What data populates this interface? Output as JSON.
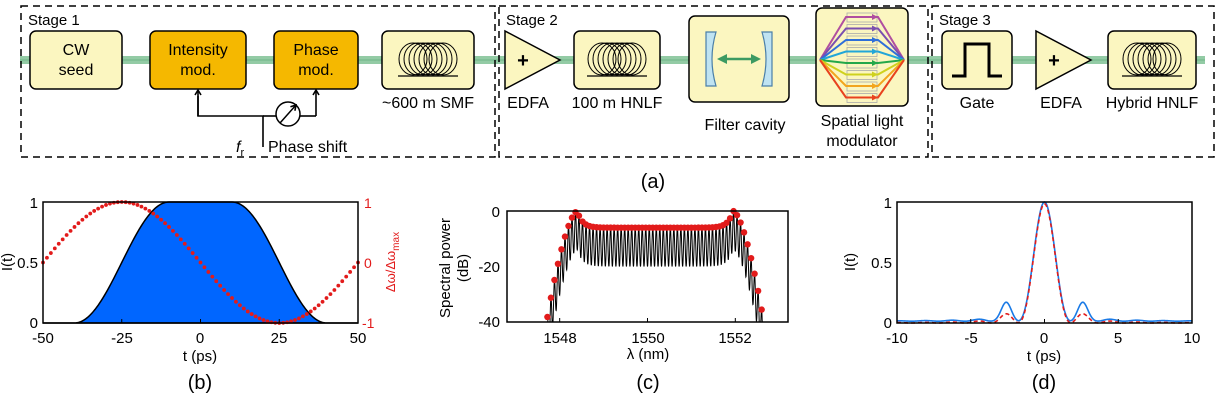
{
  "panel_a": {
    "caption": "(a)",
    "stages": [
      {
        "label": "Stage 1"
      },
      {
        "label": "Stage 2"
      },
      {
        "label": "Stage 3"
      }
    ],
    "blocks": {
      "cw_seed": [
        "CW",
        "seed"
      ],
      "intensity_mod": [
        "Intensity",
        "mod."
      ],
      "phase_mod": [
        "Phase",
        "mod."
      ],
      "smf": "~600 m SMF",
      "edfa1": "EDFA",
      "hnlf": "100 m HNLF",
      "filter": "Filter cavity",
      "slm": [
        "Spatial light",
        "modulator"
      ],
      "gate": "Gate",
      "edfa2": "EDFA",
      "hybrid_hnlf": "Hybrid HNLF",
      "fr_symbol": "f",
      "fr_sub": "r",
      "phase_shift": "Phase shift",
      "plus": "+"
    },
    "colors": {
      "fiber": "#93cba5",
      "mod_fill": "#f5b800",
      "box_fill": "#fbf6c0",
      "filter_fill": "#bfe3f2",
      "arrow_green": "#3c9a62"
    }
  },
  "panel_b": {
    "caption": "(b)",
    "xlabel": "t (ps)",
    "ylabel": "I(t)",
    "ylabel_right_main": "Δω/Δω",
    "ylabel_right_sub": "max",
    "xticks": [
      "-50",
      "-25",
      "0",
      "25",
      "50"
    ],
    "yticks": [
      "0",
      "0.5",
      "1"
    ],
    "yticks_right": [
      "-1",
      "0",
      "1"
    ],
    "colors": {
      "fill": "#0066ff",
      "dots": "#e21b1b"
    }
  },
  "panel_c": {
    "caption": "(c)",
    "xlabel": "λ (nm)",
    "ylabel": [
      "Spectral power",
      "(dB)"
    ],
    "xticks": [
      "1548",
      "1550",
      "1552"
    ],
    "yticks": [
      "0",
      "-20",
      "-40"
    ],
    "colors": {
      "dots": "#e21b1b",
      "line": "#000000"
    }
  },
  "panel_d": {
    "caption": "(d)",
    "xlabel": "t (ps)",
    "ylabel": "I(t)",
    "xticks": [
      "-10",
      "-5",
      "0",
      "5",
      "10"
    ],
    "yticks": [
      "0",
      "0.5",
      "1"
    ],
    "colors": {
      "blue": "#1a7ae6",
      "red": "#e21b1b"
    }
  },
  "chart_data": [
    {
      "type": "area",
      "panel": "b",
      "title": "",
      "xlabel": "t (ps)",
      "ylabel": "I(t)",
      "xlim": [
        -50,
        50
      ],
      "ylim": [
        0,
        1
      ],
      "y2lim": [
        -1,
        1
      ],
      "grid": false,
      "x": [
        -50,
        -40,
        -35,
        -30,
        -25,
        -20,
        -15,
        -10,
        -5,
        0,
        5,
        10,
        15,
        20,
        25,
        30,
        35,
        40,
        50
      ],
      "series": [
        {
          "values": [
            0,
            0,
            0.01,
            0.06,
            0.19,
            0.42,
            0.72,
            0.93,
            1,
            1,
            1,
            0.93,
            0.72,
            0.42,
            0.19,
            0.06,
            0.01,
            0,
            0
          ]
        },
        {
          "axis": "right",
          "values": [
            0.49,
            -0.01,
            -0.55,
            -0.86,
            -1,
            -0.96,
            -0.73,
            -0.48,
            -0.22,
            0.0,
            0.22,
            0.48,
            0.73,
            0.96,
            1,
            0.86,
            0.55,
            0.01,
            -0.49
          ]
        }
      ]
    },
    {
      "type": "line",
      "panel": "c",
      "title": "",
      "xlabel": "λ (nm)",
      "ylabel": "Spectral power (dB)",
      "xlim": [
        1546.8,
        1553.2
      ],
      "ylim": [
        -40,
        0
      ],
      "grid": false,
      "x": [
        1547.7,
        1547.85,
        1548.0,
        1548.15,
        1548.3,
        1548.4,
        1548.55,
        1548.8,
        1549.5,
        1550.0,
        1550.5,
        1551.2,
        1551.45,
        1551.6,
        1551.75,
        1551.9,
        1552.05,
        1552.2,
        1552.35
      ],
      "series": [
        {
          "values": [
            -40,
            -32,
            -20,
            -8,
            -2,
            0,
            -3,
            -5,
            -6,
            -6,
            -6,
            -5,
            -3,
            0,
            -2,
            -8,
            -20,
            -32,
            -40
          ]
        }
      ]
    },
    {
      "type": "line",
      "panel": "d",
      "title": "",
      "xlabel": "t (ps)",
      "ylabel": "I(t)",
      "xlim": [
        -10,
        10
      ],
      "ylim": [
        0,
        1
      ],
      "grid": false,
      "x": [
        -10,
        -5,
        -3.5,
        -2.6,
        -1.8,
        -1,
        -0.5,
        0,
        0.5,
        1,
        1.8,
        2.6,
        3.5,
        5,
        10
      ],
      "series": [
        {
          "values": [
            0.02,
            0.02,
            0.03,
            0.16,
            0.02,
            0.3,
            0.75,
            1,
            0.75,
            0.3,
            0.02,
            0.16,
            0.03,
            0.02,
            0.02
          ]
        },
        {
          "values": [
            0,
            0,
            0,
            0.07,
            0,
            0.3,
            0.75,
            1,
            0.75,
            0.3,
            0,
            0.07,
            0,
            0,
            0
          ]
        }
      ]
    }
  ]
}
